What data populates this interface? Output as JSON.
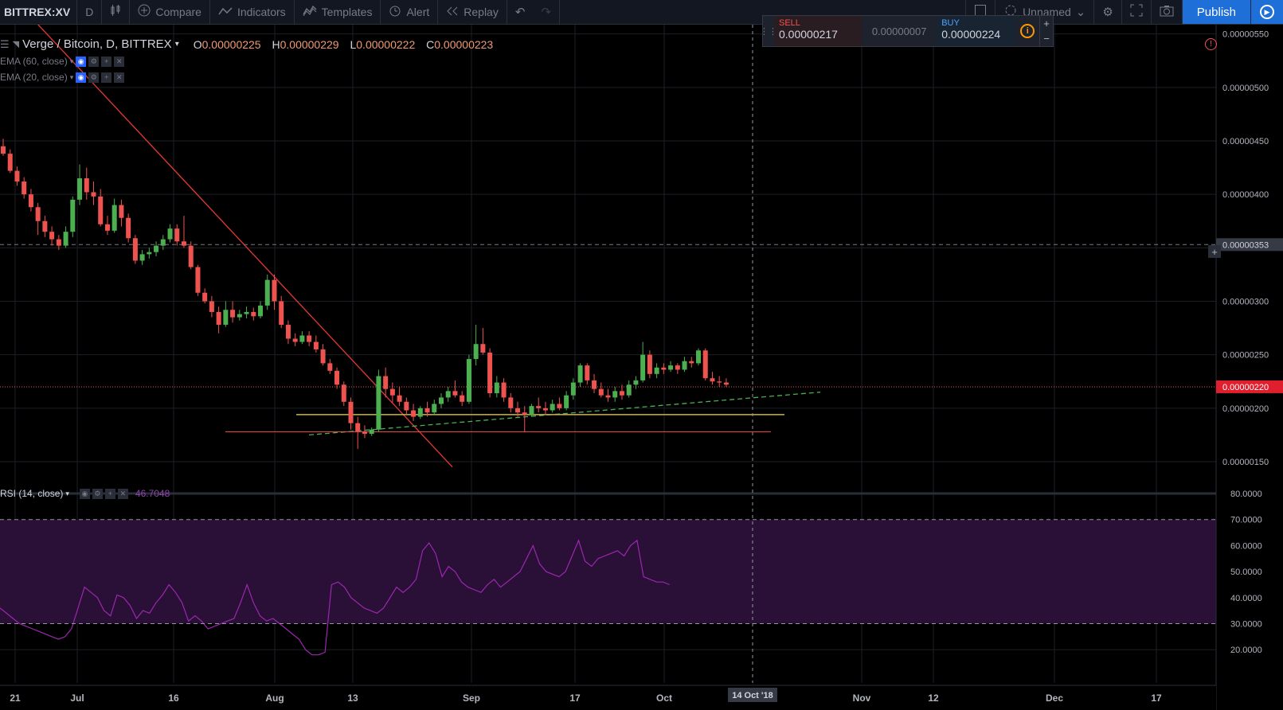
{
  "toolbar": {
    "symbol": "BITTREX:XV",
    "interval": "D",
    "compare": "Compare",
    "indicators": "Indicators",
    "templates": "Templates",
    "alert": "Alert",
    "replay": "Replay",
    "layout_name": "Unnamed",
    "publish": "Publish"
  },
  "trade": {
    "sell_label": "SELL",
    "sell_price": "0.00000217",
    "spread": "0.00000007",
    "buy_label": "BUY",
    "buy_price": "0.00000224",
    "info_glyph": "i",
    "plus": "+",
    "minus": "−"
  },
  "legend": {
    "title": "Verge / Bitcoin, D, BITTREX",
    "o_key": "O",
    "o": "0.00000225",
    "h_key": "H",
    "h": "0.00000229",
    "l_key": "L",
    "l": "0.00000222",
    "c_key": "C",
    "c": "0.00000223"
  },
  "indicators": {
    "ema60": "EMA (60, close)",
    "ema20": "EMA (20, close)",
    "rsi": "RSI (14, close)",
    "rsi_value": "46.7048"
  },
  "price_axis": {
    "labels": [
      "0.00000550",
      "0.00000500",
      "0.00000450",
      "0.00000400",
      "0.00000300",
      "0.00000250",
      "0.00000200",
      "0.00000150"
    ],
    "crosshair_price": "0.00000353",
    "last_price": "0.00000220"
  },
  "rsi_axis": {
    "labels": [
      "80.0000",
      "70.0000",
      "60.0000",
      "50.0000",
      "40.0000",
      "30.0000",
      "20.0000"
    ]
  },
  "time_axis": {
    "labels": [
      "21",
      "Jul",
      "16",
      "Aug",
      "13",
      "Sep",
      "17",
      "Oct",
      "Nov",
      "12",
      "Dec",
      "17"
    ],
    "crosshair_date": "14 Oct '18"
  },
  "colors": {
    "bull": "#26a69a",
    "bull_fill": "#4caf50",
    "bear": "#ef5350",
    "rsi_line": "#9c27b0",
    "rsi_band": "#2a0f36",
    "trend_red": "#e53935",
    "trend_green": "#4caf50",
    "support_yellow": "#c9b458",
    "background": "#000000"
  },
  "candles_note": "",
  "candles": [
    [
      4.45,
      4.52,
      4.36,
      4.38
    ],
    [
      4.38,
      4.42,
      4.2,
      4.22
    ],
    [
      4.22,
      4.26,
      4.08,
      4.12
    ],
    [
      4.12,
      4.16,
      3.96,
      4.0
    ],
    [
      4.0,
      4.05,
      3.84,
      3.88
    ],
    [
      3.88,
      3.92,
      3.62,
      3.75
    ],
    [
      3.75,
      3.8,
      3.6,
      3.65
    ],
    [
      3.65,
      3.7,
      3.52,
      3.58
    ],
    [
      3.58,
      3.62,
      3.48,
      3.52
    ],
    [
      3.52,
      3.7,
      3.5,
      3.65
    ],
    [
      3.65,
      3.98,
      3.6,
      3.95
    ],
    [
      3.95,
      4.28,
      3.9,
      4.15
    ],
    [
      4.15,
      4.25,
      3.95,
      4.02
    ],
    [
      4.02,
      4.12,
      3.9,
      3.98
    ],
    [
      3.98,
      4.05,
      3.7,
      3.72
    ],
    [
      3.72,
      3.8,
      3.62,
      3.66
    ],
    [
      3.66,
      3.96,
      3.64,
      3.9
    ],
    [
      3.9,
      3.95,
      3.7,
      3.78
    ],
    [
      3.78,
      3.82,
      3.55,
      3.59
    ],
    [
      3.59,
      3.62,
      3.35,
      3.38
    ],
    [
      3.38,
      3.48,
      3.34,
      3.44
    ],
    [
      3.44,
      3.5,
      3.4,
      3.46
    ],
    [
      3.46,
      3.56,
      3.42,
      3.52
    ],
    [
      3.52,
      3.62,
      3.48,
      3.58
    ],
    [
      3.58,
      3.72,
      3.55,
      3.68
    ],
    [
      3.68,
      3.72,
      3.52,
      3.56
    ],
    [
      3.56,
      3.8,
      3.5,
      3.52
    ],
    [
      3.52,
      3.56,
      3.3,
      3.32
    ],
    [
      3.32,
      3.34,
      3.05,
      3.08
    ],
    [
      3.08,
      3.12,
      2.98,
      3.0
    ],
    [
      3.0,
      3.05,
      2.85,
      2.9
    ],
    [
      2.9,
      2.95,
      2.7,
      2.78
    ],
    [
      2.78,
      3.0,
      2.76,
      2.92
    ],
    [
      2.92,
      3.0,
      2.8,
      2.85
    ],
    [
      2.85,
      2.92,
      2.82,
      2.88
    ],
    [
      2.88,
      2.95,
      2.84,
      2.9
    ],
    [
      2.9,
      2.94,
      2.82,
      2.86
    ],
    [
      2.86,
      3.0,
      2.84,
      2.96
    ],
    [
      2.96,
      3.25,
      2.92,
      3.2
    ],
    [
      3.2,
      3.25,
      2.92,
      3.0
    ],
    [
      3.0,
      3.05,
      2.75,
      2.78
    ],
    [
      2.78,
      2.82,
      2.6,
      2.65
    ],
    [
      2.65,
      2.7,
      2.58,
      2.62
    ],
    [
      2.62,
      2.72,
      2.6,
      2.68
    ],
    [
      2.68,
      2.72,
      2.58,
      2.62
    ],
    [
      2.62,
      2.68,
      2.52,
      2.55
    ],
    [
      2.55,
      2.6,
      2.4,
      2.42
    ],
    [
      2.42,
      2.46,
      2.32,
      2.35
    ],
    [
      2.35,
      2.38,
      2.18,
      2.22
    ],
    [
      2.22,
      2.25,
      2.02,
      2.06
    ],
    [
      2.06,
      2.1,
      1.8,
      1.86
    ],
    [
      1.86,
      1.92,
      1.62,
      1.78
    ],
    [
      1.78,
      1.84,
      1.72,
      1.76
    ],
    [
      1.76,
      1.82,
      1.74,
      1.8
    ],
    [
      1.8,
      2.36,
      1.78,
      2.3
    ],
    [
      2.3,
      2.38,
      2.1,
      2.18
    ],
    [
      2.18,
      2.24,
      2.05,
      2.12
    ],
    [
      2.12,
      2.2,
      2.02,
      2.06
    ],
    [
      2.06,
      2.1,
      1.94,
      1.98
    ],
    [
      1.98,
      2.04,
      1.88,
      1.92
    ],
    [
      1.92,
      2.02,
      1.9,
      2.0
    ],
    [
      2.0,
      2.06,
      1.92,
      1.96
    ],
    [
      1.96,
      2.08,
      1.94,
      2.04
    ],
    [
      2.04,
      2.14,
      2.0,
      2.1
    ],
    [
      2.1,
      2.2,
      2.06,
      2.16
    ],
    [
      2.16,
      2.26,
      2.1,
      2.12
    ],
    [
      2.12,
      2.16,
      2.02,
      2.06
    ],
    [
      2.06,
      2.5,
      2.04,
      2.46
    ],
    [
      2.46,
      2.78,
      2.4,
      2.6
    ],
    [
      2.6,
      2.75,
      2.5,
      2.52
    ],
    [
      2.52,
      2.56,
      2.1,
      2.14
    ],
    [
      2.14,
      2.3,
      2.1,
      2.24
    ],
    [
      2.24,
      2.28,
      2.06,
      2.1
    ],
    [
      2.1,
      2.14,
      1.96,
      2.0
    ],
    [
      2.0,
      2.06,
      1.92,
      1.96
    ],
    [
      1.96,
      2.02,
      1.78,
      1.94
    ],
    [
      1.94,
      2.04,
      1.92,
      2.02
    ],
    [
      2.02,
      2.1,
      1.96,
      2.0
    ],
    [
      2.0,
      2.06,
      1.94,
      1.98
    ],
    [
      1.98,
      2.08,
      1.96,
      2.04
    ],
    [
      2.04,
      2.1,
      1.98,
      2.0
    ],
    [
      2.0,
      2.16,
      1.98,
      2.12
    ],
    [
      2.12,
      2.28,
      2.08,
      2.24
    ],
    [
      2.24,
      2.42,
      2.2,
      2.4
    ],
    [
      2.4,
      2.42,
      2.22,
      2.26
    ],
    [
      2.26,
      2.32,
      2.14,
      2.18
    ],
    [
      2.18,
      2.24,
      2.1,
      2.12
    ],
    [
      2.12,
      2.18,
      2.06,
      2.1
    ],
    [
      2.1,
      2.2,
      2.06,
      2.16
    ],
    [
      2.16,
      2.22,
      2.08,
      2.12
    ],
    [
      2.12,
      2.26,
      2.1,
      2.22
    ],
    [
      2.22,
      2.3,
      2.18,
      2.26
    ],
    [
      2.26,
      2.62,
      2.24,
      2.5
    ],
    [
      2.5,
      2.54,
      2.28,
      2.32
    ],
    [
      2.32,
      2.42,
      2.28,
      2.38
    ],
    [
      2.38,
      2.42,
      2.32,
      2.36
    ],
    [
      2.36,
      2.44,
      2.34,
      2.4
    ],
    [
      2.4,
      2.42,
      2.32,
      2.36
    ],
    [
      2.36,
      2.48,
      2.34,
      2.44
    ],
    [
      2.44,
      2.48,
      2.38,
      2.42
    ],
    [
      2.42,
      2.56,
      2.4,
      2.54
    ],
    [
      2.54,
      2.56,
      2.26,
      2.28
    ],
    [
      2.28,
      2.34,
      2.22,
      2.25
    ],
    [
      2.25,
      2.3,
      2.2,
      2.24
    ],
    [
      2.24,
      2.28,
      2.2,
      2.22
    ]
  ],
  "rsi_values": [
    36,
    34,
    32,
    30,
    29,
    28,
    27,
    26,
    25,
    24,
    25,
    28,
    36,
    44,
    42,
    40,
    35,
    33,
    41,
    40,
    37,
    32,
    35,
    34,
    38,
    41,
    45,
    42,
    38,
    31,
    33,
    31,
    28,
    29,
    30,
    31,
    32,
    38,
    45,
    38,
    33,
    31,
    32,
    30,
    28,
    26,
    24,
    20,
    18,
    18,
    19,
    45,
    46,
    44,
    40,
    38,
    36,
    35,
    34,
    36,
    40,
    44,
    42,
    44,
    47,
    58,
    61,
    57,
    48,
    52,
    50,
    46,
    44,
    43,
    42,
    45,
    47,
    44,
    46,
    48,
    50,
    55,
    60,
    53,
    50,
    49,
    48,
    50,
    56,
    62,
    54,
    52,
    55,
    56,
    57,
    58,
    56,
    60,
    62,
    48,
    47,
    46,
    46,
    45
  ]
}
